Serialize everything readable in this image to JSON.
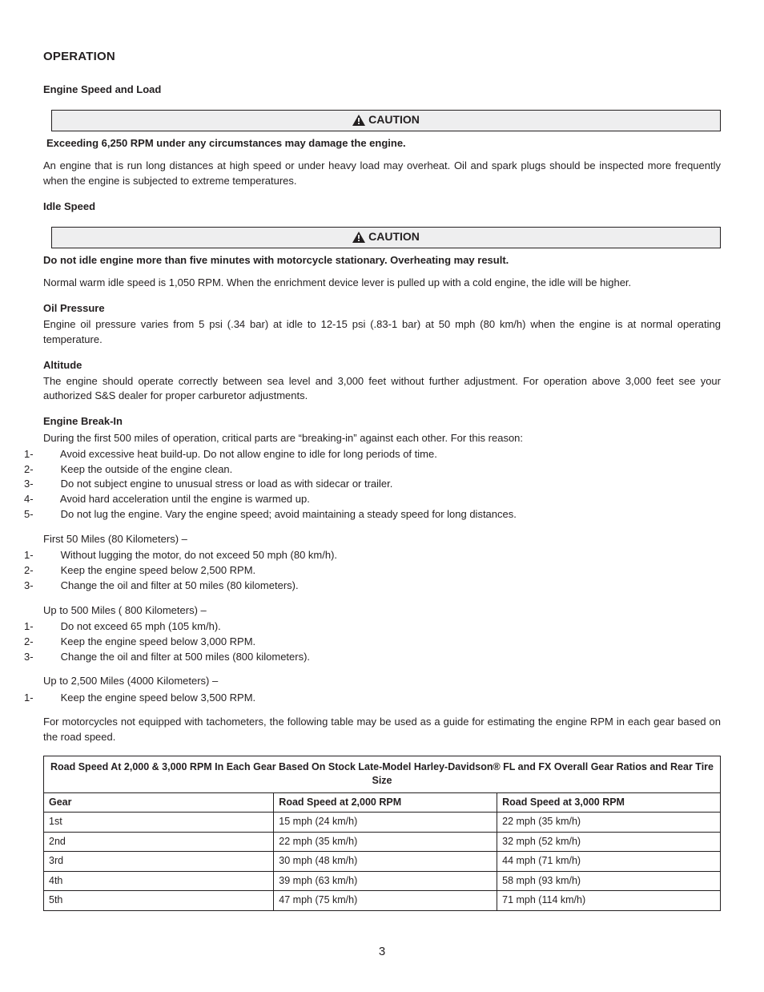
{
  "title": "OPERATION",
  "section1": {
    "heading": "Engine Speed and Load",
    "caution_label": "CAUTION",
    "warn": "Exceeding 6,250 RPM under any circumstances may damage the engine.",
    "body": "An engine that is run long distances at high speed or under heavy load may overheat. Oil and spark plugs should be inspected more frequently when the engine is subjected to extreme temperatures."
  },
  "section2": {
    "heading": "Idle Speed",
    "caution_label": "CAUTION",
    "warn": "Do not idle engine more than five minutes with motorcycle stationary. Overheating may result.",
    "body": "Normal warm idle speed is 1,050 RPM. When the enrichment device lever is pulled up with a cold engine, the idle will be higher."
  },
  "section3": {
    "heading": "Oil Pressure",
    "body": "Engine oil pressure varies from 5 psi (.34 bar) at idle to 12-15 psi (.83-1 bar) at 50 mph (80 km/h) when the engine is at normal operating temperature."
  },
  "section4": {
    "heading": "Altitude",
    "body": "The engine should operate correctly between sea level and 3,000 feet without further adjustment. For operation above 3,000 feet see your authorized S&S dealer for proper carburetor adjustments."
  },
  "section5": {
    "heading": "Engine Break-In",
    "intro": "During the first 500 miles of operation, critical parts are “breaking-in” against each other.  For this reason:",
    "list1": [
      "Avoid excessive heat build-up. Do not allow engine to idle for long periods of time.",
      "Keep the outside of the engine clean.",
      "Do not subject engine to unusual stress or load as with sidecar or trailer.",
      "Avoid hard acceleration until the engine is warmed up.",
      "Do not lug the engine. Vary the engine speed; avoid maintaining a steady speed for long distances."
    ],
    "sub1_title": "First 50 Miles (80 Kilometers) –",
    "sub1_list": [
      "Without lugging the motor, do not exceed 50 mph (80 km/h).",
      "Keep the engine speed below 2,500 RPM.",
      "Change the oil and filter at 50 miles (80 kilometers)."
    ],
    "sub2_title": "Up to 500 Miles ( 800 Kilometers) –",
    "sub2_list": [
      "Do not exceed 65 mph (105 km/h).",
      "Keep the engine speed below 3,000 RPM.",
      "Change the oil and filter at 500 miles (800 kilometers)."
    ],
    "sub3_title": "Up to 2,500 Miles (4000 Kilometers) –",
    "sub3_list": [
      "Keep the engine speed below 3,500 RPM."
    ],
    "outro": "For motorcycles not equipped with tachometers, the following table may be used as a guide for estimating the engine RPM in each gear based on the road speed."
  },
  "table": {
    "caption": "Road Speed At 2,000 & 3,000 RPM In Each Gear Based On Stock Late-Model Harley-Davidson® FL and FX Overall Gear Ratios and Rear Tire Size",
    "col1": "Gear",
    "col2": "Road Speed at 2,000 RPM",
    "col3": "Road Speed at 3,000 RPM",
    "rows": [
      {
        "gear": "1st",
        "s2000": "15 mph (24 km/h)",
        "s3000": "22 mph (35 km/h)"
      },
      {
        "gear": "2nd",
        "s2000": "22 mph (35 km/h)",
        "s3000": "32 mph (52 km/h)"
      },
      {
        "gear": "3rd",
        "s2000": "30 mph (48 km/h)",
        "s3000": "44 mph (71 km/h)"
      },
      {
        "gear": "4th",
        "s2000": "39 mph (63 km/h)",
        "s3000": "58 mph (93 km/h)"
      },
      {
        "gear": "5th",
        "s2000": "47 mph (75 km/h)",
        "s3000": "71 mph (114 km/h)"
      }
    ]
  },
  "page_number": "3",
  "colors": {
    "text": "#231f20",
    "caution_bg": "#eeeeef",
    "border": "#231f20"
  }
}
